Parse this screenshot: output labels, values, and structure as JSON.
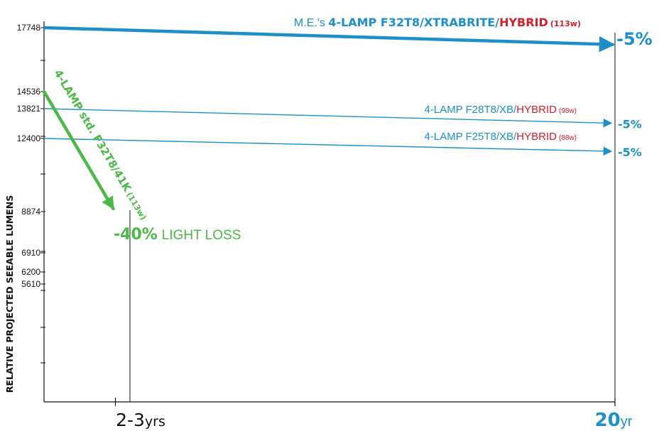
{
  "chart_data": {
    "type": "line",
    "title": "",
    "ylabel": "RELATIVE PROJECTED SEEABLE LUMENS",
    "xlabel": "",
    "y_ticks": [
      17748,
      14536,
      13821,
      12400,
      8874,
      6910,
      6200,
      5610
    ],
    "ylim": [
      0,
      19000
    ],
    "x_ticks": [
      {
        "value": 2.5,
        "num": "2-3",
        "unit": "yrs"
      },
      {
        "value": 20,
        "num": "20",
        "unit": "yr"
      }
    ],
    "xlim": [
      0,
      20
    ],
    "grid": false,
    "series": [
      {
        "key": "me",
        "name_parts": [
          {
            "text": "M.E.'s ",
            "color": "#1e8fc9",
            "weight": "normal",
            "size": 16
          },
          {
            "text": "4-LAMP F32T8/XTRABRITE/",
            "color": "#1e8fc9",
            "weight": "bold",
            "size": 16
          },
          {
            "text": "HYBRID",
            "color": "#d0202a",
            "weight": "bold",
            "size": 16
          },
          {
            "text": "(113w)",
            "color": "#d0202a",
            "weight": "bold",
            "size": 11
          }
        ],
        "x": [
          0,
          20
        ],
        "y": [
          17748,
          16900
        ],
        "end_label": "-5%",
        "color": "#1e8fc9"
      },
      {
        "key": "f28",
        "name_parts": [
          {
            "text": "4-LAMP F28T8/XB/",
            "color": "#1e8fc9",
            "weight": "normal",
            "size": 15
          },
          {
            "text": "HYBRID",
            "color": "#d0202a",
            "weight": "normal",
            "size": 15
          },
          {
            "text": "(98w)",
            "color": "#d0202a",
            "weight": "normal",
            "size": 10
          }
        ],
        "x": [
          0,
          20
        ],
        "y": [
          13821,
          13130
        ],
        "end_label": "-5%",
        "color": "#1e8fc9"
      },
      {
        "key": "f25",
        "name_parts": [
          {
            "text": "4-LAMP F25T8/XB/",
            "color": "#1e8fc9",
            "weight": "normal",
            "size": 15
          },
          {
            "text": "HYBRID",
            "color": "#d0202a",
            "weight": "normal",
            "size": 15
          },
          {
            "text": "(88w)",
            "color": "#d0202a",
            "weight": "normal",
            "size": 10
          }
        ],
        "x": [
          0,
          20
        ],
        "y": [
          12400,
          11780
        ],
        "end_label": "-5%",
        "color": "#1e8fc9"
      },
      {
        "key": "std",
        "name_parts": [
          {
            "text": "4-LAMP std. F32T8/41K",
            "color": "#4cb848",
            "weight": "bold",
            "size": 15
          },
          {
            "text": "(113w)",
            "color": "#4cb848",
            "weight": "bold",
            "size": 11
          }
        ],
        "x": [
          0,
          2.5
        ],
        "y": [
          14536,
          8874
        ],
        "end_label": "-40%",
        "end_label_suffix": "LIGHT LOSS",
        "color": "#4cb848"
      }
    ]
  }
}
